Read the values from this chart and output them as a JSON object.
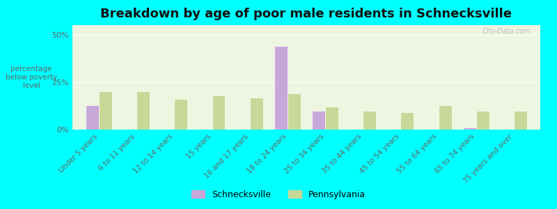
{
  "title": "Breakdown by age of poor male residents in Schnecksville",
  "categories": [
    "Under 5 years",
    "6 to 11 years",
    "12 to 14 years",
    "15 years",
    "16 and 17 years",
    "18 to 24 years",
    "25 to 34 years",
    "35 to 44 years",
    "45 to 54 years",
    "55 to 64 years",
    "65 to 74 years",
    "75 years and over"
  ],
  "schnecksville": [
    13,
    0,
    0,
    0,
    0,
    44,
    10,
    0,
    0,
    0,
    1,
    0
  ],
  "pennsylvania": [
    20,
    20,
    16,
    18,
    17,
    19,
    12,
    10,
    9,
    13,
    10,
    10
  ],
  "schnecksville_color": "#c8a8d8",
  "pennsylvania_color": "#c8d898",
  "background_color": "#00ffff",
  "plot_bg": "#eef5e0",
  "ylabel": "percentage\nbelow poverty\nlevel",
  "ylim": [
    0,
    55
  ],
  "yticks": [
    0,
    25,
    50
  ],
  "ytick_labels": [
    "0%",
    "25%",
    "50%"
  ],
  "title_fontsize": 13,
  "bar_width": 0.35,
  "legend_schnecksville": "Schnecksville",
  "legend_pennsylvania": "Pennsylvania",
  "watermark": "City-Data.com"
}
